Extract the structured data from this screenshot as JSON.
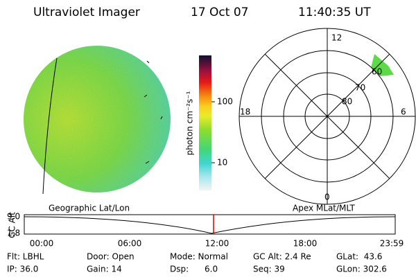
{
  "header": {
    "title": "Ultraviolet Imager",
    "date": "17 Oct 07",
    "time": "11:40:35 UT"
  },
  "colorbar": {
    "label": "photon cm⁻²s⁻¹",
    "ticks": [
      "100",
      "10"
    ]
  },
  "polar": {
    "mlt_labels": [
      "12",
      "18",
      "6",
      "0"
    ],
    "ring_labels": [
      "80",
      "70",
      "60"
    ]
  },
  "timeline": {
    "y_label": "GC Alt",
    "y_ticks": [
      "9.0",
      "1.8"
    ],
    "left_label": "Geographic Lat/Lon",
    "right_label": "Apex MLat/MLT",
    "x_ticks": [
      "00:00",
      "06:00",
      "12:00",
      "18:00",
      "23:59"
    ]
  },
  "footer": {
    "rows": [
      [
        "Flt: LBHL",
        "Door: Open",
        "Mode: Normal",
        "GC Alt: 2.4 Re",
        "GLat:  43.6"
      ],
      [
        "IP: 36.0",
        "Gain: 14",
        "Dsp:      6.0",
        "Seq: 39",
        "GLon: 302.6"
      ]
    ]
  }
}
